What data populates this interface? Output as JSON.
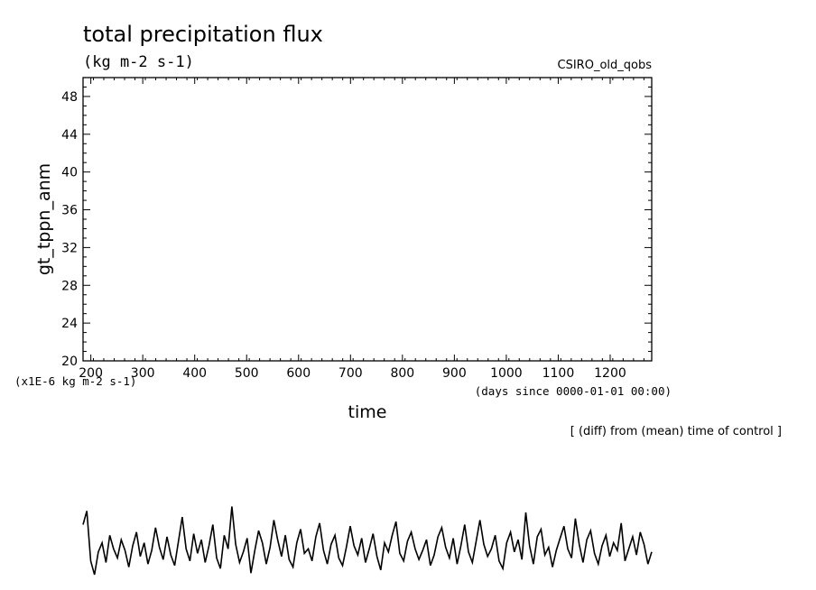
{
  "chart_data": {
    "type": "line",
    "title": "total precipitation flux",
    "units": "(kg m-2 s-1)",
    "experiment": "CSIRO_old_qobs",
    "ylabel": "gt_tppn_anm",
    "xlabel": "time",
    "x_units": "(days since 0000-01-01 00:00)",
    "y_scale_note": "(x1E-6 kg m-2 s-1)",
    "footnote": "[ (diff) from (mean) time of control ]",
    "xlim": [
      185,
      1280
    ],
    "ylim": [
      20,
      50
    ],
    "x_ticks": [
      200,
      300,
      400,
      500,
      600,
      700,
      800,
      900,
      1000,
      1100,
      1200
    ],
    "y_ticks": [
      20,
      24,
      28,
      32,
      36,
      40,
      44,
      48
    ],
    "series": [
      {
        "values_note": "data lies below the plotted y range; shown as an unaxed trace beneath the chart",
        "x_start": 185,
        "x_end": 1280,
        "values": [
          3.6,
          4.5,
          1.2,
          0.3,
          1.8,
          2.4,
          1.1,
          2.9,
          2.0,
          1.4,
          2.6,
          1.9,
          0.8,
          2.2,
          3.1,
          1.5,
          2.4,
          1.0,
          1.9,
          3.4,
          2.1,
          1.3,
          2.8,
          1.6,
          0.9,
          2.5,
          4.1,
          2.0,
          1.2,
          3.0,
          1.7,
          2.6,
          1.1,
          2.2,
          3.6,
          1.4,
          0.7,
          2.9,
          2.0,
          4.8,
          2.3,
          1.1,
          1.8,
          2.7,
          0.4,
          1.9,
          3.2,
          2.4,
          1.0,
          2.1,
          3.9,
          2.6,
          1.5,
          2.9,
          1.3,
          0.8,
          2.4,
          3.3,
          1.7,
          2.0,
          1.2,
          2.8,
          3.7,
          1.9,
          1.0,
          2.3,
          2.9,
          1.4,
          0.9,
          2.1,
          3.5,
          2.2,
          1.6,
          2.7,
          1.1,
          2.0,
          3.0,
          1.5,
          0.6,
          2.4,
          1.8,
          2.9,
          3.8,
          1.7,
          1.2,
          2.5,
          3.1,
          2.0,
          1.3,
          1.9,
          2.6,
          0.9,
          1.6,
          2.8,
          3.4,
          2.1,
          1.4,
          2.7,
          1.0,
          2.2,
          3.6,
          1.8,
          1.1,
          2.5,
          3.9,
          2.3,
          1.5,
          2.0,
          2.9,
          1.2,
          0.7,
          2.4,
          3.1,
          1.8,
          2.6,
          1.3,
          4.4,
          2.2,
          1.0,
          2.8,
          3.3,
          1.6,
          2.1,
          0.8,
          1.9,
          2.7,
          3.5,
          2.0,
          1.4,
          4.0,
          2.3,
          1.1,
          2.6,
          3.2,
          1.7,
          1.0,
          2.2,
          2.9,
          1.5,
          2.4,
          1.9,
          3.7,
          1.2,
          2.0,
          2.8,
          1.6,
          3.1,
          2.3,
          1.0,
          1.8
        ],
        "color": "#000000"
      }
    ]
  }
}
